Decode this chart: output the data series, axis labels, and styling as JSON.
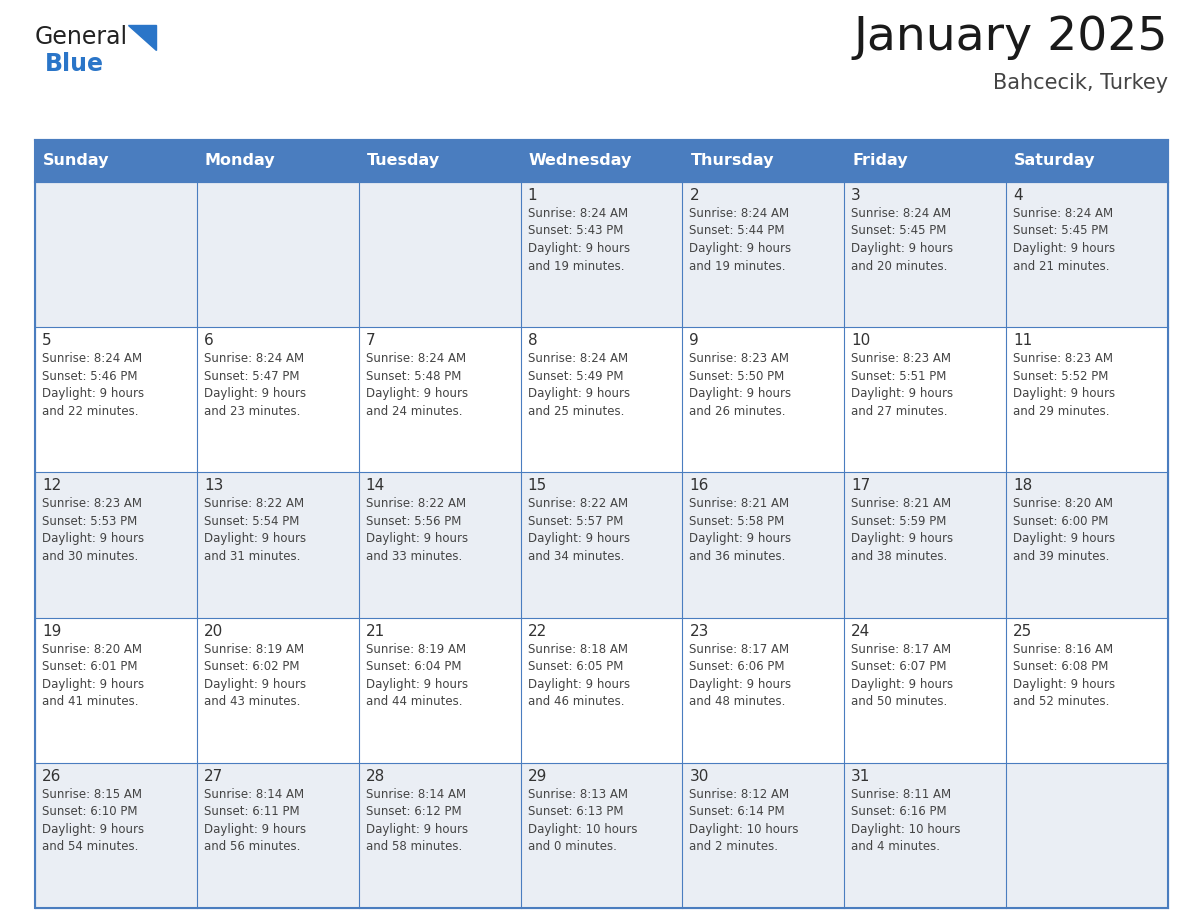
{
  "title": "January 2025",
  "subtitle": "Bahcecik, Turkey",
  "days_of_week": [
    "Sunday",
    "Monday",
    "Tuesday",
    "Wednesday",
    "Thursday",
    "Friday",
    "Saturday"
  ],
  "header_bg": "#4a7dbf",
  "header_text": "#FFFFFF",
  "cell_bg_odd": "#EAEEF4",
  "cell_bg_even": "#FFFFFF",
  "border_color": "#4a7dbf",
  "title_color": "#1a1a1a",
  "subtitle_color": "#444444",
  "day_num_color": "#333333",
  "cell_text_color": "#444444",
  "logo_black": "#222222",
  "logo_blue": "#2a75c8",
  "calendar_data": [
    [
      {
        "day": "",
        "info": ""
      },
      {
        "day": "",
        "info": ""
      },
      {
        "day": "",
        "info": ""
      },
      {
        "day": "1",
        "info": "Sunrise: 8:24 AM\nSunset: 5:43 PM\nDaylight: 9 hours\nand 19 minutes."
      },
      {
        "day": "2",
        "info": "Sunrise: 8:24 AM\nSunset: 5:44 PM\nDaylight: 9 hours\nand 19 minutes."
      },
      {
        "day": "3",
        "info": "Sunrise: 8:24 AM\nSunset: 5:45 PM\nDaylight: 9 hours\nand 20 minutes."
      },
      {
        "day": "4",
        "info": "Sunrise: 8:24 AM\nSunset: 5:45 PM\nDaylight: 9 hours\nand 21 minutes."
      }
    ],
    [
      {
        "day": "5",
        "info": "Sunrise: 8:24 AM\nSunset: 5:46 PM\nDaylight: 9 hours\nand 22 minutes."
      },
      {
        "day": "6",
        "info": "Sunrise: 8:24 AM\nSunset: 5:47 PM\nDaylight: 9 hours\nand 23 minutes."
      },
      {
        "day": "7",
        "info": "Sunrise: 8:24 AM\nSunset: 5:48 PM\nDaylight: 9 hours\nand 24 minutes."
      },
      {
        "day": "8",
        "info": "Sunrise: 8:24 AM\nSunset: 5:49 PM\nDaylight: 9 hours\nand 25 minutes."
      },
      {
        "day": "9",
        "info": "Sunrise: 8:23 AM\nSunset: 5:50 PM\nDaylight: 9 hours\nand 26 minutes."
      },
      {
        "day": "10",
        "info": "Sunrise: 8:23 AM\nSunset: 5:51 PM\nDaylight: 9 hours\nand 27 minutes."
      },
      {
        "day": "11",
        "info": "Sunrise: 8:23 AM\nSunset: 5:52 PM\nDaylight: 9 hours\nand 29 minutes."
      }
    ],
    [
      {
        "day": "12",
        "info": "Sunrise: 8:23 AM\nSunset: 5:53 PM\nDaylight: 9 hours\nand 30 minutes."
      },
      {
        "day": "13",
        "info": "Sunrise: 8:22 AM\nSunset: 5:54 PM\nDaylight: 9 hours\nand 31 minutes."
      },
      {
        "day": "14",
        "info": "Sunrise: 8:22 AM\nSunset: 5:56 PM\nDaylight: 9 hours\nand 33 minutes."
      },
      {
        "day": "15",
        "info": "Sunrise: 8:22 AM\nSunset: 5:57 PM\nDaylight: 9 hours\nand 34 minutes."
      },
      {
        "day": "16",
        "info": "Sunrise: 8:21 AM\nSunset: 5:58 PM\nDaylight: 9 hours\nand 36 minutes."
      },
      {
        "day": "17",
        "info": "Sunrise: 8:21 AM\nSunset: 5:59 PM\nDaylight: 9 hours\nand 38 minutes."
      },
      {
        "day": "18",
        "info": "Sunrise: 8:20 AM\nSunset: 6:00 PM\nDaylight: 9 hours\nand 39 minutes."
      }
    ],
    [
      {
        "day": "19",
        "info": "Sunrise: 8:20 AM\nSunset: 6:01 PM\nDaylight: 9 hours\nand 41 minutes."
      },
      {
        "day": "20",
        "info": "Sunrise: 8:19 AM\nSunset: 6:02 PM\nDaylight: 9 hours\nand 43 minutes."
      },
      {
        "day": "21",
        "info": "Sunrise: 8:19 AM\nSunset: 6:04 PM\nDaylight: 9 hours\nand 44 minutes."
      },
      {
        "day": "22",
        "info": "Sunrise: 8:18 AM\nSunset: 6:05 PM\nDaylight: 9 hours\nand 46 minutes."
      },
      {
        "day": "23",
        "info": "Sunrise: 8:17 AM\nSunset: 6:06 PM\nDaylight: 9 hours\nand 48 minutes."
      },
      {
        "day": "24",
        "info": "Sunrise: 8:17 AM\nSunset: 6:07 PM\nDaylight: 9 hours\nand 50 minutes."
      },
      {
        "day": "25",
        "info": "Sunrise: 8:16 AM\nSunset: 6:08 PM\nDaylight: 9 hours\nand 52 minutes."
      }
    ],
    [
      {
        "day": "26",
        "info": "Sunrise: 8:15 AM\nSunset: 6:10 PM\nDaylight: 9 hours\nand 54 minutes."
      },
      {
        "day": "27",
        "info": "Sunrise: 8:14 AM\nSunset: 6:11 PM\nDaylight: 9 hours\nand 56 minutes."
      },
      {
        "day": "28",
        "info": "Sunrise: 8:14 AM\nSunset: 6:12 PM\nDaylight: 9 hours\nand 58 minutes."
      },
      {
        "day": "29",
        "info": "Sunrise: 8:13 AM\nSunset: 6:13 PM\nDaylight: 10 hours\nand 0 minutes."
      },
      {
        "day": "30",
        "info": "Sunrise: 8:12 AM\nSunset: 6:14 PM\nDaylight: 10 hours\nand 2 minutes."
      },
      {
        "day": "31",
        "info": "Sunrise: 8:11 AM\nSunset: 6:16 PM\nDaylight: 10 hours\nand 4 minutes."
      },
      {
        "day": "",
        "info": ""
      }
    ]
  ]
}
